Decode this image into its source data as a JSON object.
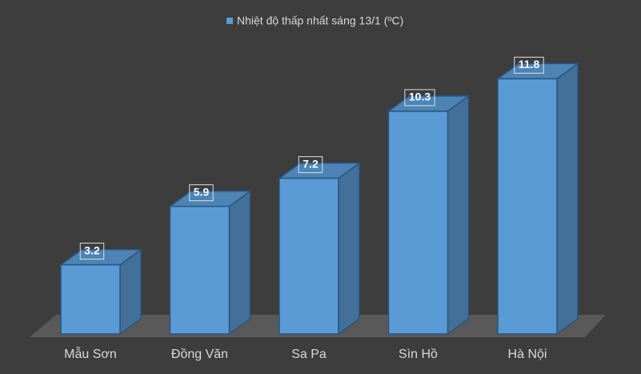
{
  "chart_data": {
    "type": "bar3d",
    "categories": [
      "Mẫu Sơn",
      "Đồng Văn",
      "Sa Pa",
      "Sìn Hồ",
      "Hà Nội"
    ],
    "series": [
      {
        "name": "Nhiệt độ thấp nhất sáng 13/1 (ºC)",
        "color": "#5b9bd5",
        "values": [
          3.2,
          5.9,
          7.2,
          10.3,
          11.8
        ]
      }
    ],
    "legend": "top",
    "data_labels": true
  }
}
